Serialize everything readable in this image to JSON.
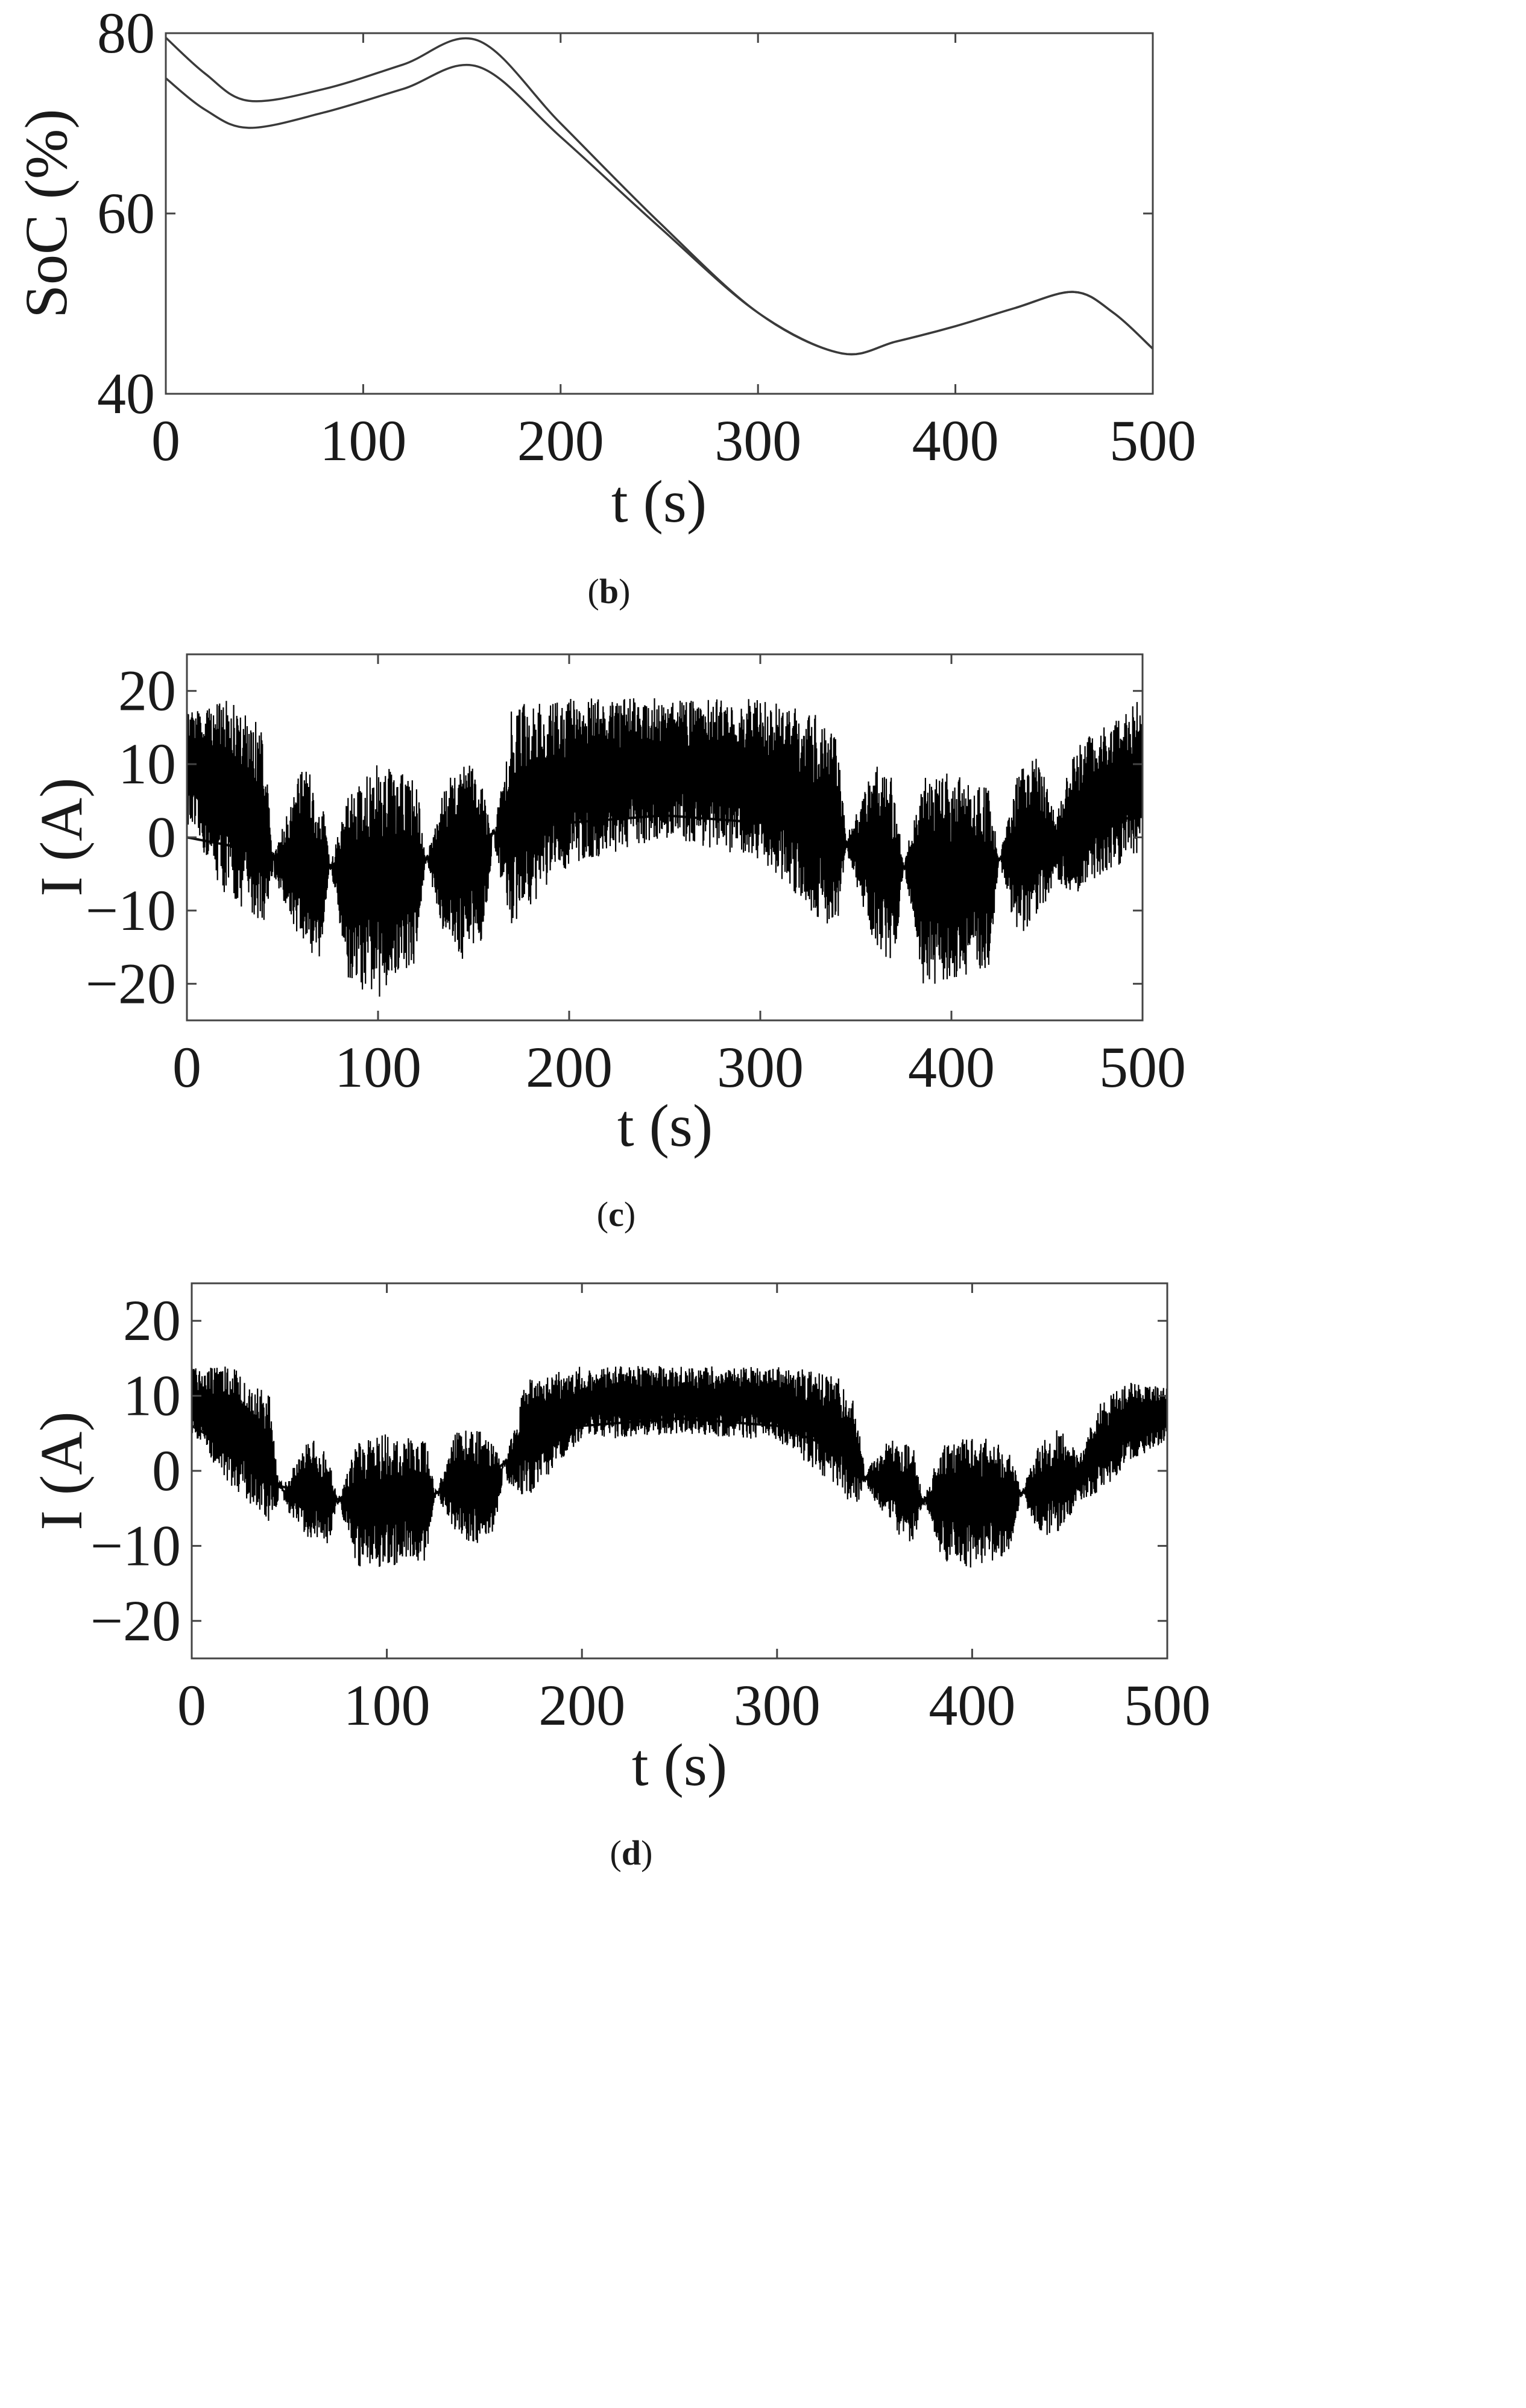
{
  "chart_data": [
    {
      "type": "line",
      "panel": "b",
      "xlabel": "t (s)",
      "ylabel": "SoC (%)",
      "xlim": [
        0,
        500
      ],
      "ylim": [
        40,
        80
      ],
      "xticks": [
        0,
        100,
        200,
        300,
        400,
        500
      ],
      "yticks": [
        40,
        60,
        80
      ],
      "grid": false,
      "series": [
        {
          "x": [
            0,
            20,
            42,
            80,
            120,
            158,
            200,
            250,
            300,
            342,
            370,
            400,
            430,
            460,
            480,
            500
          ],
          "y": [
            79.5,
            75.5,
            72.5,
            73.8,
            76.5,
            79.2,
            70,
            59,
            49,
            44.5,
            45.8,
            47.5,
            49.5,
            51.3,
            49,
            45
          ]
        },
        {
          "x": [
            0,
            20,
            42,
            80,
            120,
            158,
            200,
            250,
            300,
            342,
            370,
            400,
            430,
            460,
            480,
            500
          ],
          "y": [
            75,
            71.5,
            69.5,
            71.2,
            73.8,
            76.3,
            68.5,
            58.5,
            49,
            44.5,
            45.8,
            47.5,
            49.5,
            51.3,
            49,
            45
          ]
        }
      ]
    },
    {
      "type": "line",
      "panel": "c",
      "xlabel": "t (s)",
      "ylabel": "I (A)",
      "xlim": [
        0,
        500
      ],
      "ylim": [
        -25,
        25
      ],
      "xticks": [
        0,
        100,
        200,
        300,
        400,
        500
      ],
      "yticks": [
        -20,
        -10,
        0,
        10,
        20
      ],
      "ytick_labels": [
        "−20",
        "−10",
        "0",
        "10",
        "20"
      ],
      "grid": false,
      "envelope": {
        "x": [
          0,
          20,
          40,
          45,
          60,
          70,
          75,
          85,
          100,
          120,
          125,
          135,
          145,
          155,
          160,
          170,
          200,
          250,
          300,
          330,
          340,
          345,
          360,
          370,
          375,
          385,
          400,
          420,
          425,
          435,
          445,
          455,
          465,
          480,
          500
        ],
        "upper": [
          17,
          19,
          15,
          -3,
          10,
          7,
          -4,
          8,
          10,
          8,
          -3,
          7,
          11,
          8,
          -1,
          18,
          19,
          19,
          19,
          17,
          14,
          0,
          10,
          8,
          -4,
          9,
          9,
          7,
          -3,
          9,
          11,
          4,
          12,
          16,
          19
        ],
        "lower": [
          2,
          -8,
          -12,
          -5,
          -15,
          -17,
          -4,
          -20,
          -22,
          -17,
          -3,
          -14,
          -17,
          -14,
          -1,
          -12,
          -4,
          0,
          -3,
          -11,
          -13,
          -2,
          -15,
          -18,
          -4,
          -20,
          -20,
          -18,
          -3,
          -15,
          -11,
          -6,
          -8,
          -5,
          -2
        ],
        "baseline": [
          0,
          -1,
          -2,
          -2.5,
          -3,
          -3.5,
          -3.8,
          -4,
          -4,
          -3.5,
          -3,
          -2,
          -1,
          0,
          0.5,
          1,
          2,
          3,
          2,
          1,
          0,
          -1,
          -2.5,
          -3.5,
          -4,
          -4,
          -4,
          -3.5,
          -3,
          -2,
          -1,
          0,
          1,
          2,
          3
        ]
      }
    },
    {
      "type": "line",
      "panel": "d",
      "xlabel": "t (s)",
      "ylabel": "I (A)",
      "xlim": [
        0,
        500
      ],
      "ylim": [
        -25,
        25
      ],
      "xticks": [
        0,
        100,
        200,
        300,
        400,
        500
      ],
      "yticks": [
        -20,
        -10,
        0,
        10,
        20
      ],
      "ytick_labels": [
        "−20",
        "−10",
        "0",
        "10",
        "20"
      ],
      "grid": false,
      "envelope": {
        "x": [
          0,
          20,
          40,
          45,
          60,
          70,
          75,
          85,
          100,
          120,
          125,
          135,
          145,
          155,
          160,
          170,
          200,
          250,
          300,
          330,
          340,
          345,
          360,
          370,
          375,
          385,
          400,
          420,
          425,
          435,
          445,
          455,
          465,
          480,
          500
        ],
        "upper": [
          14,
          14,
          10,
          -3,
          5,
          2,
          -4,
          4,
          5,
          4,
          -3,
          5,
          6,
          4,
          0,
          12,
          14,
          14,
          14,
          13,
          9,
          0,
          5,
          3,
          -4,
          4,
          5,
          3,
          -3,
          4,
          6,
          2,
          9,
          12,
          11
        ],
        "lower": [
          5,
          -2,
          -7,
          -4,
          -9,
          -10,
          -4,
          -13,
          -13,
          -12,
          -3,
          -8,
          -10,
          -8,
          -1,
          -4,
          4,
          5,
          4,
          -2,
          -5,
          -2,
          -8,
          -10,
          -4,
          -12,
          -13,
          -11,
          -3,
          -9,
          -8,
          -4,
          -3,
          1,
          4
        ],
        "baseline": [
          6,
          3,
          -1,
          -2,
          -3,
          -3.5,
          -3.8,
          -4,
          -4,
          -3.5,
          -3,
          -2,
          -1,
          0,
          1,
          3,
          6,
          7,
          6,
          3,
          1,
          -1,
          -2.5,
          -3.5,
          -4,
          -4,
          -4,
          -3.5,
          -3,
          -2,
          -1,
          0,
          2,
          4,
          6
        ]
      }
    }
  ],
  "panel_labels": [
    {
      "open": "(",
      "letter": "b",
      "close": ")"
    },
    {
      "open": "(",
      "letter": "c",
      "close": ")"
    },
    {
      "open": "(",
      "letter": "d",
      "close": ")"
    }
  ]
}
